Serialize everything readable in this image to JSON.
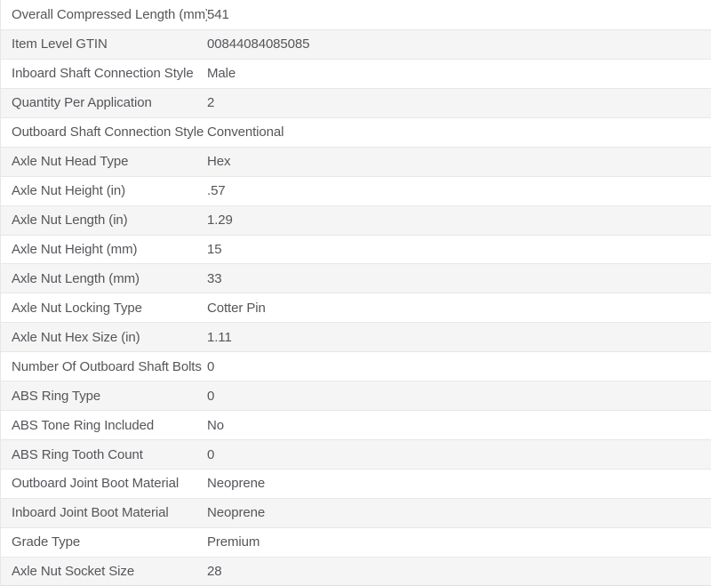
{
  "colors": {
    "background": "#ffffff",
    "stripe": "#f5f5f5",
    "border": "#e7e7e7",
    "text": "#54565a"
  },
  "table": {
    "rows": [
      {
        "label": "Overall Compressed Length (mm)",
        "value": "541"
      },
      {
        "label": "Item Level GTIN",
        "value": "00844084085085"
      },
      {
        "label": "Inboard Shaft Connection Style",
        "value": "Male"
      },
      {
        "label": "Quantity Per Application",
        "value": "2"
      },
      {
        "label": "Outboard Shaft Connection Style",
        "value": "Conventional"
      },
      {
        "label": "Axle Nut Head Type",
        "value": "Hex"
      },
      {
        "label": "Axle Nut Height (in)",
        "value": ".57"
      },
      {
        "label": "Axle Nut Length (in)",
        "value": "1.29"
      },
      {
        "label": "Axle Nut Height (mm)",
        "value": "15"
      },
      {
        "label": "Axle Nut Length (mm)",
        "value": "33"
      },
      {
        "label": "Axle Nut Locking Type",
        "value": "Cotter Pin"
      },
      {
        "label": "Axle Nut Hex Size (in)",
        "value": "1.11"
      },
      {
        "label": "Number Of Outboard Shaft Bolts",
        "value": "0"
      },
      {
        "label": "ABS Ring Type",
        "value": "0"
      },
      {
        "label": "ABS Tone Ring Included",
        "value": "No"
      },
      {
        "label": "ABS Ring Tooth Count",
        "value": "0"
      },
      {
        "label": "Outboard Joint Boot Material",
        "value": "Neoprene"
      },
      {
        "label": "Inboard Joint Boot Material",
        "value": "Neoprene"
      },
      {
        "label": "Grade Type",
        "value": "Premium"
      },
      {
        "label": "Axle Nut Socket Size",
        "value": "28"
      }
    ]
  }
}
